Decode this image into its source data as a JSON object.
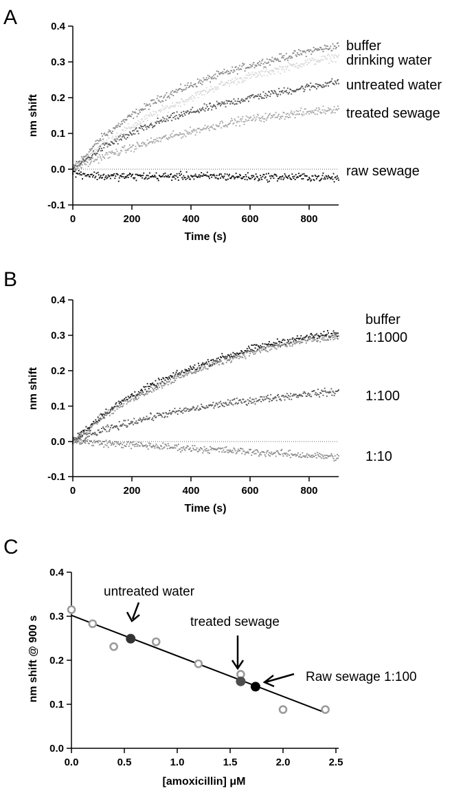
{
  "chart_data": [
    {
      "panel": "A",
      "type": "scatter",
      "xlabel": "Time (s)",
      "ylabel": "nm shift",
      "xlim": [
        0,
        900
      ],
      "ylim": [
        -0.1,
        0.4
      ],
      "xticks": [
        0,
        200,
        400,
        600,
        800
      ],
      "yticks": [
        -0.1,
        0.0,
        0.1,
        0.2,
        0.3,
        0.4
      ],
      "ytick_labels": [
        "-0.1",
        "0.0",
        "0.1",
        "0.2",
        "0.3",
        "0.4"
      ],
      "zero_line": true,
      "series": [
        {
          "name": "buffer",
          "color": "#8a8a8a",
          "model": "curve",
          "x": [
            0,
            100,
            200,
            300,
            400,
            500,
            600,
            700,
            800,
            900
          ],
          "y": [
            0.0,
            0.09,
            0.15,
            0.2,
            0.235,
            0.265,
            0.29,
            0.31,
            0.33,
            0.345
          ]
        },
        {
          "name": "drinking water",
          "color": "#d9d9d9",
          "model": "curve",
          "x": [
            0,
            100,
            200,
            300,
            400,
            500,
            600,
            700,
            800,
            900
          ],
          "y": [
            0.0,
            0.07,
            0.12,
            0.165,
            0.2,
            0.235,
            0.26,
            0.28,
            0.3,
            0.315
          ]
        },
        {
          "name": "untreated water",
          "color": "#555555",
          "model": "curve",
          "x": [
            0,
            100,
            200,
            300,
            400,
            500,
            600,
            700,
            800,
            900
          ],
          "y": [
            0.0,
            0.06,
            0.1,
            0.135,
            0.16,
            0.18,
            0.2,
            0.215,
            0.23,
            0.245
          ]
        },
        {
          "name": "treated sewage",
          "color": "#a8a8a8",
          "model": "curve",
          "x": [
            0,
            100,
            200,
            300,
            400,
            500,
            600,
            700,
            800,
            900
          ],
          "y": [
            0.0,
            0.035,
            0.06,
            0.085,
            0.105,
            0.125,
            0.14,
            0.15,
            0.16,
            0.17
          ]
        },
        {
          "name": "raw sewage",
          "color": "#111111",
          "model": "curve",
          "x": [
            0,
            100,
            200,
            300,
            400,
            500,
            600,
            700,
            800,
            900
          ],
          "y": [
            -0.01,
            -0.02,
            -0.02,
            -0.02,
            -0.02,
            -0.02,
            -0.022,
            -0.022,
            -0.022,
            -0.025
          ]
        }
      ],
      "series_labels": [
        "buffer",
        "drinking water",
        "untreated water",
        "treated sewage",
        "raw sewage"
      ]
    },
    {
      "panel": "B",
      "type": "scatter",
      "xlabel": "Time (s)",
      "ylabel": "nm shift",
      "xlim": [
        0,
        900
      ],
      "ylim": [
        -0.1,
        0.4
      ],
      "xticks": [
        0,
        200,
        400,
        600,
        800
      ],
      "yticks": [
        -0.1,
        0.0,
        0.1,
        0.2,
        0.3,
        0.4
      ],
      "ytick_labels": [
        "-0.1",
        "0.0",
        "0.1",
        "0.2",
        "0.3",
        "0.4"
      ],
      "zero_line": true,
      "series": [
        {
          "name": "buffer",
          "color": "#1a1a1a",
          "model": "curve",
          "x": [
            0,
            100,
            200,
            300,
            400,
            500,
            600,
            700,
            800,
            900
          ],
          "y": [
            0.0,
            0.075,
            0.13,
            0.17,
            0.205,
            0.235,
            0.26,
            0.28,
            0.295,
            0.305
          ]
        },
        {
          "name": "1:1000",
          "color": "#8c8c8c",
          "model": "curve",
          "x": [
            0,
            100,
            200,
            300,
            400,
            500,
            600,
            700,
            800,
            900
          ],
          "y": [
            0.0,
            0.07,
            0.12,
            0.16,
            0.195,
            0.225,
            0.25,
            0.27,
            0.285,
            0.295
          ]
        },
        {
          "name": "1:100",
          "color": "#595959",
          "model": "curve",
          "x": [
            0,
            100,
            200,
            300,
            400,
            500,
            600,
            700,
            800,
            900
          ],
          "y": [
            0.0,
            0.03,
            0.055,
            0.075,
            0.09,
            0.105,
            0.115,
            0.125,
            0.135,
            0.14
          ]
        },
        {
          "name": "1:10",
          "color": "#8c8c8c",
          "model": "curve",
          "x": [
            0,
            100,
            200,
            300,
            400,
            500,
            600,
            700,
            800,
            900
          ],
          "y": [
            0.0,
            -0.005,
            -0.01,
            -0.015,
            -0.02,
            -0.025,
            -0.03,
            -0.035,
            -0.04,
            -0.045
          ]
        }
      ],
      "series_labels": [
        "buffer",
        "1:1000",
        "1:100",
        "1:10"
      ]
    },
    {
      "panel": "C",
      "type": "scatter",
      "xlabel": "[amoxicillin] μM",
      "ylabel": "nm shift @ 900 s",
      "xlim": [
        0,
        2.5
      ],
      "ylim": [
        0,
        0.4
      ],
      "xticks": [
        0,
        0.5,
        1.0,
        1.5,
        2.0,
        2.5
      ],
      "xtick_labels": [
        "0.0",
        "0.5",
        "1.0",
        "1.5",
        "2.0",
        "2.5"
      ],
      "yticks": [
        0,
        0.1,
        0.2,
        0.3,
        0.4
      ],
      "ytick_labels": [
        "0.0",
        "0.1",
        "0.2",
        "0.3",
        "0.4"
      ],
      "calibration": {
        "color": "#9a9a9a",
        "x": [
          0.0,
          0.2,
          0.4,
          0.8,
          1.2,
          1.6,
          2.0,
          2.4
        ],
        "y": [
          0.315,
          0.283,
          0.231,
          0.242,
          0.192,
          0.168,
          0.088,
          0.088
        ]
      },
      "fit_line": {
        "x": [
          0.0,
          2.4
        ],
        "y": [
          0.302,
          0.081
        ]
      },
      "samples": [
        {
          "name": "untreated water",
          "x": 0.56,
          "y": 0.249,
          "color": "#333333"
        },
        {
          "name": "treated sewage",
          "x": 1.6,
          "y": 0.152,
          "color": "#4d4d4d"
        },
        {
          "name": "Raw sewage 1:100",
          "x": 1.74,
          "y": 0.14,
          "color": "#000000"
        }
      ],
      "annotations": [
        "untreated water",
        "treated sewage",
        "Raw sewage 1:100"
      ]
    }
  ],
  "panel_letters": [
    "A",
    "B",
    "C"
  ]
}
